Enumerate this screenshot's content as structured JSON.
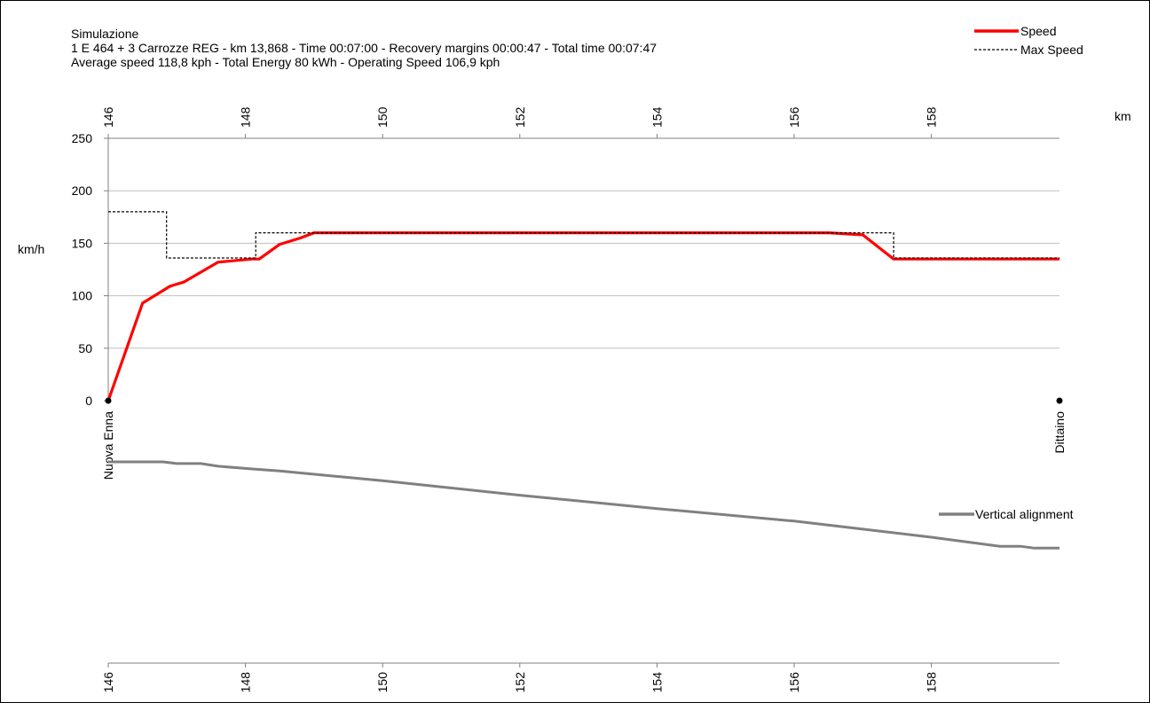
{
  "header": {
    "title": "Simulazione",
    "line1": "1 E 464 + 3 Carrozze REG  -  km 13,868  -  Time 00:07:00  -  Recovery margins 00:00:47  -  Total time 00:07:47",
    "line2": "Average speed 118,8 kph  -  Total Energy 80 kWh  -  Operating Speed 106,9 kph"
  },
  "colors": {
    "speed": "#ff0000",
    "max_speed": "#000000",
    "vertical_alignment": "#808080",
    "grid": "#bfbfbf",
    "axis": "#808080"
  },
  "chart_data": [
    {
      "type": "line",
      "x_unit": "km",
      "y_unit": "km/h",
      "xlim": [
        146,
        159.868
      ],
      "ylim": [
        0,
        250
      ],
      "x_ticks": [
        "146",
        "148",
        "150",
        "152",
        "154",
        "156",
        "158"
      ],
      "y_ticks": [
        "0",
        "50",
        "100",
        "150",
        "200",
        "250"
      ],
      "grid": "horizontal",
      "legend_position": "top-right",
      "stations": [
        "Nuova Enna",
        "Dittaino"
      ],
      "station_km": [
        146,
        159.868
      ],
      "series": [
        {
          "name": "Speed",
          "style": "solid",
          "points": [
            [
              146.0,
              0
            ],
            [
              146.5,
              93
            ],
            [
              146.9,
              109
            ],
            [
              147.1,
              113
            ],
            [
              147.6,
              132
            ],
            [
              148.1,
              135
            ],
            [
              148.2,
              135
            ],
            [
              148.5,
              149
            ],
            [
              148.8,
              155
            ],
            [
              149.0,
              160
            ],
            [
              156.5,
              160
            ],
            [
              157.0,
              158
            ],
            [
              157.45,
              135
            ],
            [
              159.868,
              135
            ]
          ]
        },
        {
          "name": "Max Speed",
          "style": "dashed",
          "points": [
            [
              146.0,
              180
            ],
            [
              146.85,
              180
            ],
            [
              146.85,
              136
            ],
            [
              148.15,
              136
            ],
            [
              148.15,
              160
            ],
            [
              157.45,
              160
            ],
            [
              157.45,
              136
            ],
            [
              159.868,
              136
            ]
          ]
        }
      ]
    },
    {
      "type": "line",
      "x_unit": "",
      "xlim": [
        146,
        159.868
      ],
      "ylim": [
        0,
        1
      ],
      "x_ticks": [
        "146",
        "148",
        "150",
        "152",
        "154",
        "156",
        "158"
      ],
      "legend_position": "right",
      "series": [
        {
          "name": "Vertical alignment",
          "style": "solid",
          "points": [
            [
              146.0,
              0.737
            ],
            [
              146.4,
              0.737
            ],
            [
              146.8,
              0.737
            ],
            [
              147.0,
              0.731
            ],
            [
              147.35,
              0.731
            ],
            [
              147.6,
              0.721
            ],
            [
              148.1,
              0.711
            ],
            [
              148.5,
              0.704
            ],
            [
              150.0,
              0.668
            ],
            [
              152.0,
              0.615
            ],
            [
              154.0,
              0.566
            ],
            [
              156.0,
              0.52
            ],
            [
              158.0,
              0.461
            ],
            [
              159.0,
              0.428
            ],
            [
              159.3,
              0.428
            ],
            [
              159.5,
              0.421
            ],
            [
              159.868,
              0.421
            ]
          ]
        }
      ]
    }
  ]
}
